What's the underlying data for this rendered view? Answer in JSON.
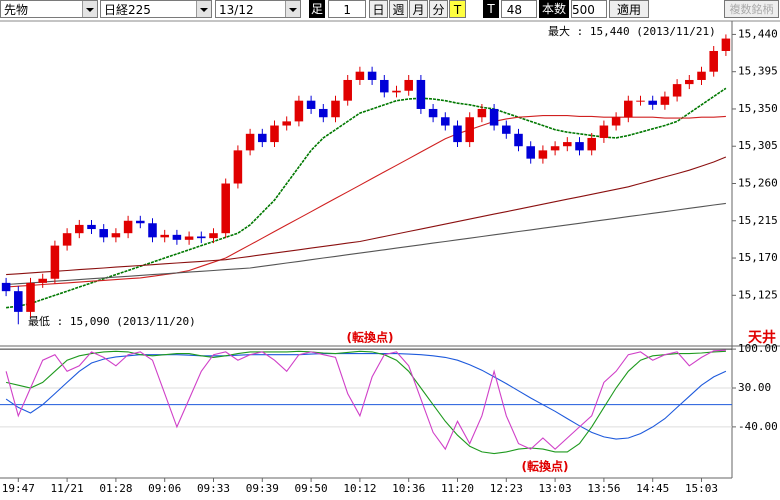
{
  "toolbar": {
    "market": "先物",
    "index": "日経225",
    "contract": "13/12",
    "bar_label": "足",
    "bar_size": "1",
    "periods": [
      "日",
      "週",
      "月",
      "分",
      "T"
    ],
    "tick_label": "T",
    "tick_value": "48",
    "count_label": "本数",
    "count_value": "500",
    "apply": "適用",
    "multi": "複数銘柄"
  },
  "chart_data": [
    {
      "type": "candlestick",
      "categories": [
        null,
        "19:47",
        null,
        null,
        null,
        "11/21",
        null,
        null,
        null,
        "01:28",
        null,
        null,
        null,
        "09:06",
        null,
        null,
        null,
        "09:33",
        null,
        null,
        null,
        "09:39",
        null,
        null,
        null,
        "09:50",
        null,
        null,
        null,
        "10:12",
        null,
        null,
        null,
        "10:36",
        null,
        null,
        null,
        "11:20",
        null,
        null,
        null,
        "12:23",
        null,
        null,
        null,
        "13:03",
        null,
        null,
        null,
        "13:56",
        null,
        null,
        null,
        "14:45",
        null,
        null,
        null,
        "15:03",
        null,
        null
      ],
      "open": [
        15140,
        15130,
        15105,
        15140,
        15145,
        15185,
        15200,
        15210,
        15205,
        15195,
        15200,
        15215,
        15212,
        15195,
        15198,
        15192,
        15196,
        15194,
        15200,
        15260,
        15300,
        15320,
        15310,
        15330,
        15335,
        15360,
        15350,
        15340,
        15360,
        15385,
        15395,
        15385,
        15370,
        15372,
        15385,
        15350,
        15340,
        15330,
        15310,
        15340,
        15350,
        15330,
        15320,
        15305,
        15290,
        15300,
        15305,
        15310,
        15300,
        15315,
        15330,
        15340,
        15360,
        15360,
        15355,
        15365,
        15380,
        15385,
        15395,
        15420
      ],
      "high": [
        15146,
        15136,
        15146,
        15151,
        15191,
        15206,
        15216,
        15216,
        15211,
        15206,
        15221,
        15221,
        15218,
        15204,
        15204,
        15202,
        15202,
        15206,
        15266,
        15306,
        15326,
        15326,
        15336,
        15341,
        15366,
        15366,
        15356,
        15366,
        15391,
        15401,
        15401,
        15391,
        15378,
        15391,
        15391,
        15356,
        15346,
        15336,
        15346,
        15356,
        15356,
        15336,
        15326,
        15311,
        15306,
        15311,
        15316,
        15316,
        15321,
        15336,
        15346,
        15366,
        15366,
        15366,
        15371,
        15386,
        15391,
        15401,
        15426,
        15440
      ],
      "low": [
        15124,
        15090,
        15099,
        15134,
        15139,
        15179,
        15194,
        15199,
        15189,
        15189,
        15194,
        15206,
        15189,
        15189,
        15186,
        15186,
        15188,
        15188,
        15194,
        15254,
        15294,
        15304,
        15304,
        15324,
        15329,
        15344,
        15334,
        15334,
        15354,
        15379,
        15379,
        15364,
        15364,
        15366,
        15344,
        15334,
        15324,
        15304,
        15304,
        15334,
        15324,
        15314,
        15299,
        15284,
        15284,
        15294,
        15299,
        15294,
        15294,
        15309,
        15324,
        15334,
        15354,
        15349,
        15349,
        15359,
        15374,
        15379,
        15389,
        15414
      ],
      "close": [
        15130,
        15105,
        15140,
        15145,
        15185,
        15200,
        15210,
        15205,
        15195,
        15200,
        15215,
        15212,
        15195,
        15198,
        15192,
        15196,
        15194,
        15200,
        15260,
        15300,
        15320,
        15310,
        15330,
        15335,
        15360,
        15350,
        15340,
        15360,
        15385,
        15395,
        15385,
        15370,
        15372,
        15385,
        15350,
        15340,
        15330,
        15310,
        15340,
        15350,
        15330,
        15320,
        15305,
        15290,
        15300,
        15305,
        15310,
        15300,
        15315,
        15330,
        15340,
        15360,
        15360,
        15355,
        15365,
        15380,
        15385,
        15395,
        15420,
        15435
      ],
      "up_color": "#e00000",
      "down_color": "#0000d8",
      "series": [
        {
          "color": "#007800",
          "values": [
            15110,
            15112,
            15115,
            15120,
            15125,
            15130,
            15135,
            15140,
            15145,
            15150,
            15155,
            15160,
            15165,
            15170,
            15175,
            15180,
            15185,
            15190,
            15195,
            15200,
            15210,
            15225,
            15240,
            15260,
            15280,
            15300,
            15315,
            15325,
            15335,
            15345,
            15350,
            15355,
            15360,
            15362,
            15363,
            15362,
            15360,
            15357,
            15355,
            15352,
            15350,
            15345,
            15340,
            15335,
            15330,
            15325,
            15322,
            15320,
            15318,
            15316,
            15315,
            15318,
            15322,
            15326,
            15330,
            15335,
            15345,
            15355,
            15365,
            15375
          ]
        },
        {
          "color": "#d02020",
          "values": [
            15135,
            15136,
            15137,
            15138,
            15139,
            15140,
            15141,
            15142,
            15143,
            15144,
            15145,
            15146,
            15148,
            15150,
            15152,
            15155,
            15160,
            15165,
            15170,
            15178,
            15186,
            15194,
            15202,
            15210,
            15218,
            15226,
            15234,
            15242,
            15250,
            15258,
            15266,
            15274,
            15282,
            15290,
            15298,
            15306,
            15314,
            15320,
            15325,
            15330,
            15335,
            15338,
            15340,
            15341,
            15342,
            15342,
            15342,
            15341,
            15341,
            15340,
            15340,
            15340,
            15340,
            15340,
            15339,
            15339,
            15339,
            15340,
            15340,
            15341
          ]
        },
        {
          "color": "#8b1010",
          "values": [
            15150,
            15151,
            15152,
            15153,
            15154,
            15155,
            15156,
            15157,
            15158,
            15159,
            15160,
            15161,
            15162,
            15163,
            15164,
            15165,
            15166,
            15167,
            15168,
            15170,
            15172,
            15174,
            15176,
            15178,
            15180,
            15182,
            15184,
            15186,
            15188,
            15190,
            15193,
            15196,
            15199,
            15202,
            15205,
            15208,
            15211,
            15214,
            15217,
            15220,
            15223,
            15226,
            15229,
            15232,
            15235,
            15238,
            15241,
            15244,
            15247,
            15250,
            15253,
            15256,
            15260,
            15264,
            15268,
            15272,
            15276,
            15281,
            15286,
            15292
          ]
        },
        {
          "color": "#555555",
          "values": [
            15138,
            15139,
            15140,
            15141,
            15142,
            15143,
            15144,
            15145,
            15146,
            15147,
            15148,
            15149,
            15150,
            15151,
            15152,
            15153,
            15154,
            15155,
            15156,
            15157,
            15158,
            15160,
            15162,
            15164,
            15166,
            15168,
            15170,
            15172,
            15174,
            15176,
            15178,
            15180,
            15182,
            15184,
            15186,
            15188,
            15190,
            15192,
            15194,
            15196,
            15198,
            15200,
            15202,
            15204,
            15206,
            15208,
            15210,
            15212,
            15214,
            15216,
            15218,
            15220,
            15222,
            15224,
            15226,
            15228,
            15230,
            15232,
            15234,
            15236
          ]
        }
      ],
      "ylim": [
        15065,
        15455
      ],
      "yticks": [
        {
          "value": 15440,
          "label": "15,440"
        },
        {
          "value": 15395,
          "label": "15,395"
        },
        {
          "value": 15350,
          "label": "15,350"
        },
        {
          "value": 15305,
          "label": "15,305"
        },
        {
          "value": 15260,
          "label": "15,260"
        },
        {
          "value": 15215,
          "label": "15,215"
        },
        {
          "value": 15170,
          "label": "15,170"
        },
        {
          "value": 15125,
          "label": "15,125"
        }
      ],
      "annotations": [
        "最大 : 15,440 (2013/11/21)",
        "最低 : 15,090 (2013/11/20)"
      ]
    },
    {
      "type": "line",
      "series": [
        {
          "color": "#1e5adc",
          "values": [
            10,
            -5,
            -15,
            0,
            20,
            40,
            60,
            75,
            82,
            86,
            88,
            90,
            90,
            90,
            90,
            89,
            88,
            88,
            88,
            89,
            90,
            90,
            90,
            90,
            90,
            91,
            92,
            92,
            92,
            92,
            92,
            92,
            92,
            91,
            90,
            88,
            85,
            80,
            72,
            62,
            50,
            38,
            25,
            12,
            0,
            -12,
            -25,
            -38,
            -50,
            -58,
            -62,
            -60,
            -52,
            -40,
            -25,
            -5,
            15,
            35,
            50,
            60
          ]
        },
        {
          "color": "#1f9a1f",
          "values": [
            40,
            35,
            30,
            40,
            60,
            80,
            88,
            92,
            95,
            96,
            95,
            90,
            88,
            90,
            92,
            92,
            88,
            85,
            88,
            92,
            95,
            95,
            95,
            95,
            96,
            95,
            93,
            92,
            94,
            96,
            95,
            90,
            80,
            60,
            30,
            0,
            -30,
            -55,
            -75,
            -85,
            -88,
            -85,
            -80,
            -78,
            -80,
            -85,
            -85,
            -70,
            -40,
            -5,
            30,
            60,
            80,
            88,
            90,
            92,
            92,
            93,
            95,
            96
          ]
        },
        {
          "color": "#d040c8",
          "values": [
            60,
            -20,
            30,
            80,
            90,
            60,
            70,
            95,
            85,
            70,
            90,
            95,
            80,
            20,
            -40,
            10,
            60,
            90,
            95,
            80,
            90,
            95,
            80,
            60,
            90,
            95,
            90,
            85,
            20,
            -20,
            50,
            90,
            95,
            70,
            10,
            -50,
            -80,
            -30,
            -70,
            -20,
            60,
            -20,
            -70,
            -80,
            -60,
            -80,
            -60,
            -40,
            -20,
            40,
            60,
            90,
            95,
            80,
            90,
            95,
            70,
            85,
            97,
            98
          ]
        }
      ],
      "ylim": [
        -132,
        102
      ],
      "yticks": [
        {
          "value": 100,
          "label": "100.00"
        },
        {
          "value": 30,
          "label": "30.00"
        },
        {
          "value": -40,
          "label": "-40.00"
        }
      ],
      "zero_line": 0,
      "annotations": [
        "(転換点)",
        "(転換点)",
        "天井"
      ]
    }
  ]
}
